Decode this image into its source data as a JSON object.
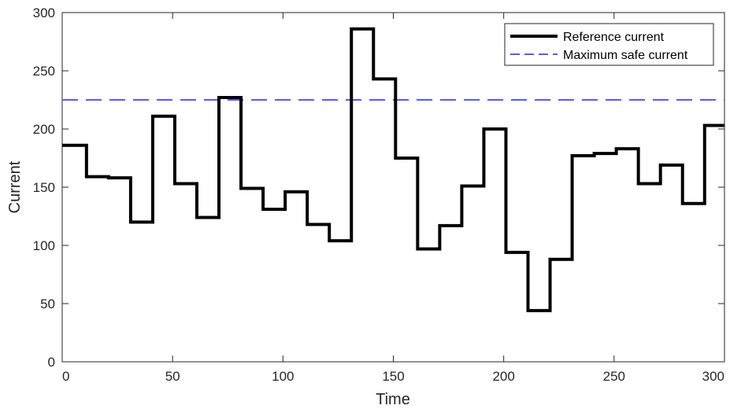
{
  "chart_data": {
    "type": "line",
    "xlabel": "Time",
    "ylabel": "Current",
    "xlim": [
      0,
      300
    ],
    "ylim": [
      0,
      300
    ],
    "xticks": [
      0,
      50,
      100,
      150,
      200,
      250,
      300
    ],
    "yticks": [
      0,
      50,
      100,
      150,
      200,
      250,
      300
    ],
    "grid": false,
    "legend_position": "top-right",
    "series": [
      {
        "name": "Reference current",
        "style": "step",
        "color": "#000000",
        "x": [
          0,
          11,
          21,
          31,
          41,
          51,
          61,
          71,
          81,
          91,
          101,
          111,
          121,
          131,
          141,
          151,
          161,
          171,
          181,
          191,
          201,
          211,
          221,
          231,
          241,
          251,
          261,
          271,
          281,
          291,
          300
        ],
        "values": [
          186,
          159,
          158,
          120,
          211,
          153,
          124,
          227,
          149,
          131,
          146,
          118,
          104,
          286,
          243,
          175,
          97,
          117,
          151,
          200,
          94,
          44,
          88,
          177,
          179,
          183,
          153,
          169,
          136,
          203,
          203
        ]
      },
      {
        "name": "Maximum safe current",
        "style": "dashed",
        "color": "#5b5bf0",
        "x": [
          0,
          300
        ],
        "values": [
          225,
          225
        ]
      }
    ]
  }
}
